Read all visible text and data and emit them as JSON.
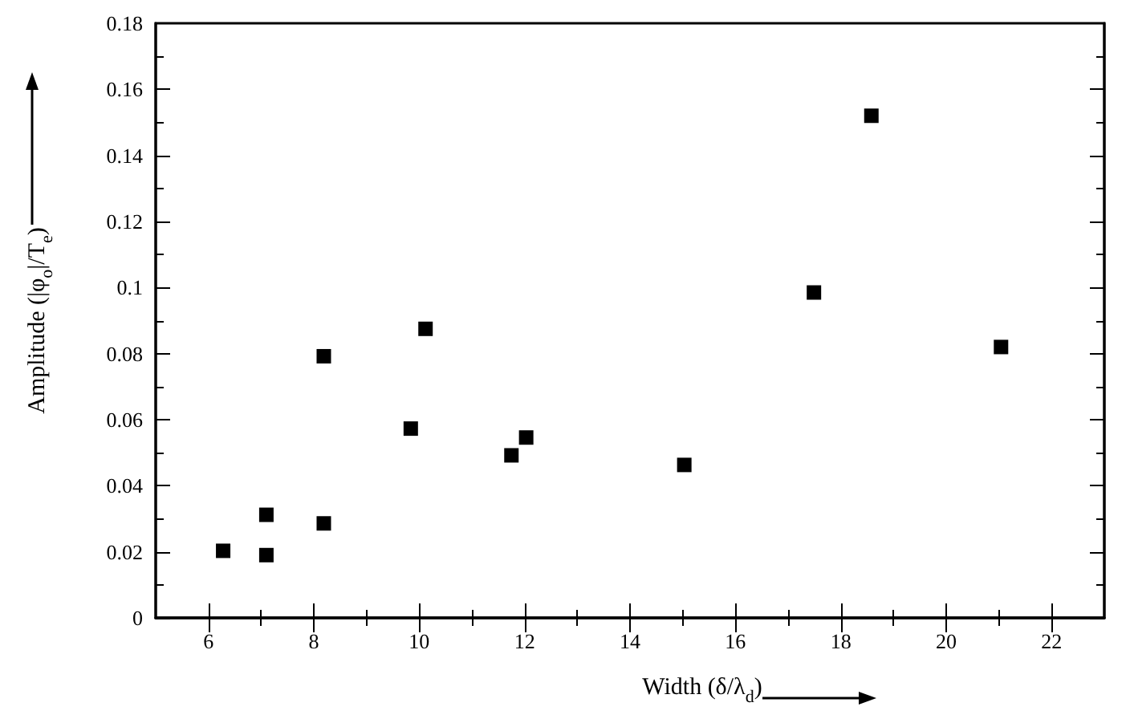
{
  "chart_data": {
    "type": "scatter",
    "xlabel": "Width (δ/λ$_{d}$)",
    "ylabel": "Amplitude (|φ$_{o}$|/T$_{e}$)",
    "x": [
      6.28,
      7.1,
      7.1,
      8.19,
      8.19,
      9.84,
      10.12,
      11.75,
      12.03,
      15.03,
      17.49,
      18.58,
      21.04
    ],
    "series": [
      {
        "color": "#000000",
        "values": [
          0.0203,
          0.019,
          0.0312,
          0.0286,
          0.0792,
          0.0573,
          0.0875,
          0.0492,
          0.0546,
          0.0463,
          0.0985,
          0.152,
          0.082
        ]
      }
    ],
    "xlim": [
      5,
      23
    ],
    "xticks": [
      6,
      8,
      10,
      12,
      14,
      16,
      18,
      20,
      22
    ],
    "ylim": [
      0,
      0.18
    ],
    "yticks": [
      0,
      0.02,
      0.04,
      0.06,
      0.08,
      0.1,
      0.12,
      0.14,
      0.16,
      0.18
    ],
    "grid": false,
    "marker": "square"
  }
}
